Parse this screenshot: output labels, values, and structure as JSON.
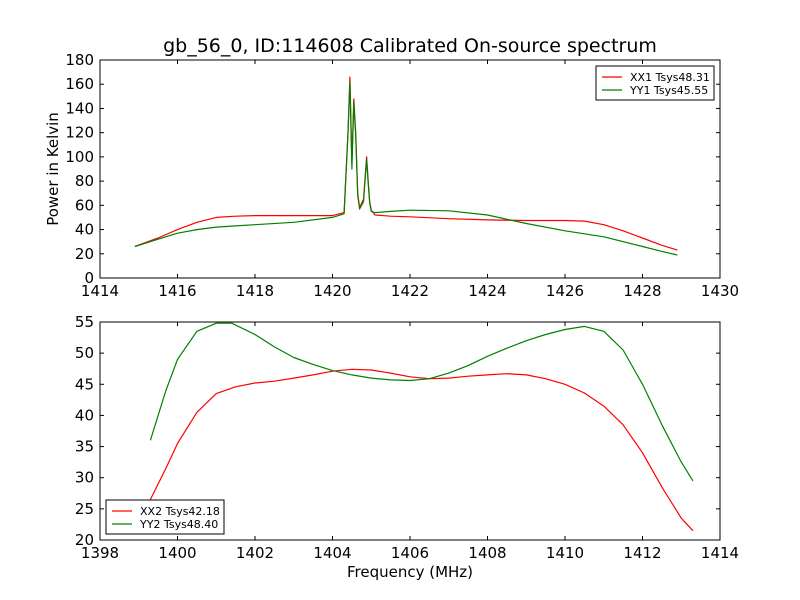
{
  "chart_data": [
    {
      "type": "line",
      "title": "gb_56_0, ID:114608 Calibrated On-source spectrum",
      "xlabel": "",
      "ylabel": "Power in Kelvin",
      "xlim": [
        1414,
        1430
      ],
      "ylim": [
        0,
        180
      ],
      "x_ticks": [
        "1414",
        "1416",
        "1418",
        "1420",
        "1422",
        "1424",
        "1426",
        "1428",
        "1430"
      ],
      "y_ticks": [
        "0",
        "20",
        "40",
        "60",
        "80",
        "100",
        "120",
        "140",
        "160",
        "180"
      ],
      "grid": false,
      "legend_position": "top-right",
      "series": [
        {
          "name": "XX1 Tsys48.31",
          "color": "#ff0000",
          "x": [
            1414.9,
            1415.5,
            1416.0,
            1416.5,
            1417.0,
            1417.5,
            1418.0,
            1419.0,
            1420.0,
            1420.3,
            1420.4,
            1420.45,
            1420.5,
            1420.55,
            1420.6,
            1420.65,
            1420.7,
            1420.8,
            1420.88,
            1420.92,
            1420.96,
            1421.0,
            1421.1,
            1421.5,
            1422.0,
            1423.0,
            1424.0,
            1425.0,
            1426.0,
            1426.5,
            1427.0,
            1427.5,
            1428.0,
            1428.5,
            1428.9
          ],
          "y": [
            26,
            33,
            40,
            46,
            50,
            51,
            51.5,
            51.5,
            51.5,
            54,
            120,
            166,
            95,
            148,
            120,
            70,
            58,
            65,
            100,
            80,
            63,
            56,
            52,
            51,
            50.5,
            49,
            48,
            47.5,
            47.5,
            47,
            44,
            39,
            33,
            27,
            23
          ]
        },
        {
          "name": "YY1 Tsys45.55",
          "color": "#008000",
          "x": [
            1414.9,
            1415.5,
            1416.0,
            1416.5,
            1417.0,
            1417.5,
            1418.0,
            1419.0,
            1420.0,
            1420.3,
            1420.4,
            1420.45,
            1420.5,
            1420.55,
            1420.6,
            1420.65,
            1420.7,
            1420.8,
            1420.88,
            1420.92,
            1420.96,
            1421.0,
            1421.1,
            1421.5,
            1422.0,
            1423.0,
            1424.0,
            1425.0,
            1426.0,
            1427.0,
            1428.0,
            1428.5,
            1428.9
          ],
          "y": [
            26,
            32,
            37,
            40,
            42,
            43,
            44,
            46,
            50,
            53,
            120,
            162,
            90,
            145,
            118,
            68,
            57,
            63,
            98,
            78,
            62,
            55,
            54,
            55,
            56,
            55.5,
            52,
            45,
            39,
            34,
            26,
            22,
            19
          ]
        }
      ]
    },
    {
      "type": "line",
      "title": "",
      "xlabel": "Frequency (MHz)",
      "ylabel": "",
      "xlim": [
        1398,
        1414
      ],
      "ylim": [
        20,
        55
      ],
      "x_ticks": [
        "1398",
        "1400",
        "1402",
        "1404",
        "1406",
        "1408",
        "1410",
        "1412",
        "1414"
      ],
      "y_ticks": [
        "20",
        "25",
        "30",
        "35",
        "40",
        "45",
        "50",
        "55"
      ],
      "grid": false,
      "legend_position": "bottom-left",
      "series": [
        {
          "name": "XX2 Tsys42.18",
          "color": "#ff0000",
          "x": [
            1399.3,
            1399.7,
            1400.0,
            1400.5,
            1401.0,
            1401.5,
            1402.0,
            1402.5,
            1403.0,
            1403.5,
            1404.0,
            1404.5,
            1405.0,
            1405.5,
            1406.0,
            1406.5,
            1407.0,
            1407.5,
            1408.0,
            1408.5,
            1409.0,
            1409.5,
            1410.0,
            1410.5,
            1411.0,
            1411.5,
            1412.0,
            1412.5,
            1413.0,
            1413.3
          ],
          "y": [
            26.5,
            31.5,
            35.5,
            40.5,
            43.5,
            44.6,
            45.2,
            45.5,
            46.0,
            46.5,
            47.1,
            47.4,
            47.3,
            46.8,
            46.2,
            45.9,
            46.0,
            46.3,
            46.5,
            46.7,
            46.5,
            45.9,
            45.0,
            43.6,
            41.5,
            38.5,
            34.0,
            28.5,
            23.5,
            21.5
          ]
        },
        {
          "name": "YY2 Tsys48.40",
          "color": "#008000",
          "x": [
            1399.3,
            1399.7,
            1400.0,
            1400.5,
            1401.0,
            1401.4,
            1402.0,
            1402.5,
            1403.0,
            1403.5,
            1404.0,
            1404.5,
            1405.0,
            1405.5,
            1406.0,
            1406.5,
            1407.0,
            1407.5,
            1408.0,
            1408.5,
            1409.0,
            1409.5,
            1410.0,
            1410.5,
            1411.0,
            1411.5,
            1412.0,
            1412.5,
            1413.0,
            1413.3
          ],
          "y": [
            36,
            44,
            49,
            53.5,
            54.8,
            54.8,
            53,
            51,
            49.3,
            48.2,
            47.2,
            46.5,
            46.0,
            45.7,
            45.6,
            45.9,
            46.8,
            48.0,
            49.5,
            50.8,
            52.0,
            53.0,
            53.8,
            54.3,
            53.5,
            50.5,
            45.0,
            38.5,
            32.5,
            29.5
          ]
        }
      ]
    }
  ]
}
